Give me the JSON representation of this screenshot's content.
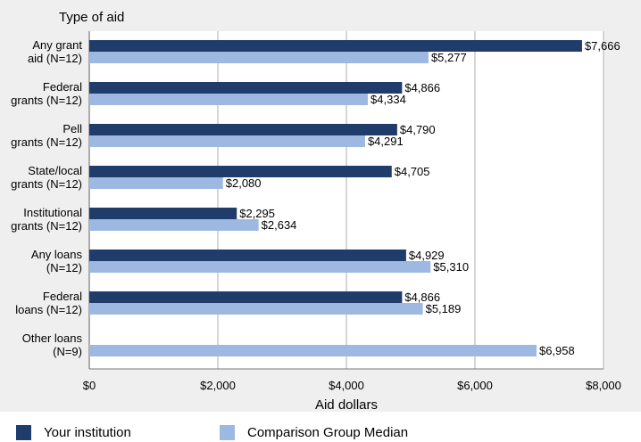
{
  "chart_data": {
    "type": "bar",
    "orientation": "horizontal",
    "y_axis_title": "Type of aid",
    "xlabel": "Aid dollars",
    "xlim": [
      0,
      8000
    ],
    "x_ticks": [
      0,
      2000,
      4000,
      6000,
      8000
    ],
    "x_tick_labels": [
      "$0",
      "$2,000",
      "$4,000",
      "$6,000",
      "$8,000"
    ],
    "categories": [
      [
        "Any grant",
        "aid (N=12)"
      ],
      [
        "Federal",
        "grants (N=12)"
      ],
      [
        "Pell",
        "grants (N=12)"
      ],
      [
        "State/local",
        "grants (N=12)"
      ],
      [
        "Institutional",
        "grants (N=12)"
      ],
      [
        "Any loans",
        "(N=12)"
      ],
      [
        "Federal",
        "loans (N=12)"
      ],
      [
        "Other loans",
        "(N=9)"
      ]
    ],
    "series": [
      {
        "name": "Your institution",
        "color": "#1f3c6a",
        "values": [
          7666,
          4866,
          4790,
          4705,
          2295,
          4929,
          4866,
          null
        ],
        "labels": [
          "$7,666",
          "$4,866",
          "$4,790",
          "$4,705",
          "$2,295",
          "$4,929",
          "$4,866",
          ""
        ]
      },
      {
        "name": "Comparison Group Median",
        "color": "#9db9e2",
        "values": [
          5277,
          4334,
          4291,
          2080,
          2634,
          5310,
          5189,
          6958
        ],
        "labels": [
          "$5,277",
          "$4,334",
          "$4,291",
          "$2,080",
          "$2,634",
          "$5,310",
          "$5,189",
          "$6,958"
        ]
      }
    ],
    "grid": true,
    "legend": "bottom"
  }
}
